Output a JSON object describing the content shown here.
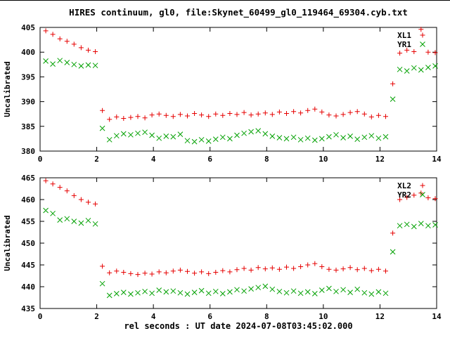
{
  "title": "HIRES continuum, gl0, file:Skynet_60499_gl0_119464_69304.cyb.txt",
  "xlabel": "rel seconds : UT date 2024-07-08T03:45:02.000",
  "chart_data": [
    {
      "type": "scatter",
      "ylabel": "Uncalibrated",
      "xlim": [
        0,
        14
      ],
      "ylim": [
        380,
        405
      ],
      "xticks": [
        0,
        2,
        4,
        6,
        8,
        10,
        12,
        14
      ],
      "yticks": [
        380,
        385,
        390,
        395,
        400,
        405
      ],
      "grid": false,
      "legend_position": "top-right",
      "x": [
        0.2,
        0.45,
        0.7,
        0.95,
        1.2,
        1.45,
        1.7,
        1.95,
        2.2,
        2.45,
        2.7,
        2.95,
        3.2,
        3.45,
        3.7,
        3.95,
        4.2,
        4.45,
        4.7,
        4.95,
        5.2,
        5.45,
        5.7,
        5.95,
        6.2,
        6.45,
        6.7,
        6.95,
        7.2,
        7.45,
        7.7,
        7.95,
        8.2,
        8.45,
        8.7,
        8.95,
        9.2,
        9.45,
        9.7,
        9.95,
        10.2,
        10.45,
        10.7,
        10.95,
        11.2,
        11.45,
        11.7,
        11.95,
        12.2,
        12.45,
        12.7,
        12.95,
        13.2,
        13.45,
        13.7,
        13.95
      ],
      "series": [
        {
          "name": "XL1",
          "marker": "plus",
          "color": "#e60000",
          "values": [
            404.3,
            403.6,
            402.7,
            402.2,
            401.6,
            400.9,
            400.4,
            400.1,
            388.2,
            386.4,
            386.9,
            386.6,
            386.8,
            387.0,
            386.7,
            387.3,
            387.5,
            387.2,
            387.0,
            387.4,
            387.1,
            387.6,
            387.3,
            387.0,
            387.5,
            387.2,
            387.6,
            387.4,
            387.8,
            387.3,
            387.5,
            387.7,
            387.4,
            387.9,
            387.6,
            388.0,
            387.7,
            388.2,
            388.5,
            387.9,
            387.3,
            387.1,
            387.4,
            387.8,
            388.0,
            387.5,
            386.9,
            387.2,
            387.0,
            393.6,
            399.8,
            400.4,
            400.1,
            404.6,
            400.0,
            399.9
          ]
        },
        {
          "name": "YR1",
          "marker": "cross",
          "color": "#00a000",
          "values": [
            398.2,
            397.6,
            398.3,
            397.9,
            397.5,
            397.2,
            397.4,
            397.3,
            384.6,
            382.3,
            383.1,
            383.5,
            383.3,
            383.6,
            383.8,
            383.2,
            382.6,
            383.0,
            382.9,
            383.4,
            382.1,
            381.9,
            382.3,
            382.0,
            382.4,
            382.8,
            382.5,
            383.2,
            383.6,
            383.9,
            384.1,
            383.5,
            383.0,
            382.7,
            382.5,
            382.8,
            382.3,
            382.6,
            382.2,
            382.5,
            382.9,
            383.3,
            382.7,
            383.0,
            382.4,
            382.8,
            383.1,
            382.6,
            382.9,
            390.5,
            396.5,
            396.2,
            396.8,
            396.4,
            396.9,
            397.2
          ]
        }
      ]
    },
    {
      "type": "scatter",
      "ylabel": "Uncalibrated",
      "xlim": [
        0,
        14
      ],
      "ylim": [
        435,
        465
      ],
      "xticks": [
        0,
        2,
        4,
        6,
        8,
        10,
        12,
        14
      ],
      "yticks": [
        435,
        440,
        445,
        450,
        455,
        460,
        465
      ],
      "grid": false,
      "legend_position": "top-right",
      "x": [
        0.2,
        0.45,
        0.7,
        0.95,
        1.2,
        1.45,
        1.7,
        1.95,
        2.2,
        2.45,
        2.7,
        2.95,
        3.2,
        3.45,
        3.7,
        3.95,
        4.2,
        4.45,
        4.7,
        4.95,
        5.2,
        5.45,
        5.7,
        5.95,
        6.2,
        6.45,
        6.7,
        6.95,
        7.2,
        7.45,
        7.7,
        7.95,
        8.2,
        8.45,
        8.7,
        8.95,
        9.2,
        9.45,
        9.7,
        9.95,
        10.2,
        10.45,
        10.7,
        10.95,
        11.2,
        11.45,
        11.7,
        11.95,
        12.2,
        12.45,
        12.7,
        12.95,
        13.2,
        13.45,
        13.7,
        13.95
      ],
      "series": [
        {
          "name": "XL2",
          "marker": "plus",
          "color": "#e60000",
          "values": [
            464.3,
            463.6,
            462.8,
            462.0,
            460.9,
            460.0,
            459.4,
            459.0,
            444.7,
            443.2,
            443.6,
            443.3,
            443.0,
            442.8,
            443.1,
            442.9,
            443.4,
            443.2,
            443.6,
            443.8,
            443.5,
            443.1,
            443.4,
            443.0,
            443.3,
            443.7,
            443.4,
            443.9,
            444.2,
            443.8,
            444.4,
            444.1,
            444.3,
            444.0,
            444.5,
            444.2,
            444.6,
            445.0,
            445.3,
            444.6,
            444.0,
            443.8,
            444.1,
            444.4,
            443.9,
            444.2,
            443.7,
            444.0,
            443.6,
            452.3,
            460.0,
            460.5,
            461.0,
            461.5,
            460.4,
            460.2
          ]
        },
        {
          "name": "YR2",
          "marker": "cross",
          "color": "#00a000",
          "values": [
            457.5,
            456.8,
            455.3,
            455.6,
            455.0,
            454.6,
            455.2,
            454.4,
            440.7,
            438.0,
            438.4,
            438.7,
            438.3,
            438.6,
            438.9,
            438.5,
            439.2,
            438.8,
            439.0,
            438.6,
            438.3,
            438.7,
            439.1,
            438.5,
            438.9,
            438.4,
            438.8,
            439.3,
            439.0,
            439.5,
            439.8,
            440.1,
            439.4,
            438.9,
            438.6,
            439.0,
            438.5,
            438.8,
            438.4,
            439.2,
            439.6,
            438.9,
            439.3,
            438.7,
            439.4,
            438.6,
            438.3,
            438.8,
            438.5,
            448.0,
            454.0,
            454.3,
            453.8,
            454.5,
            454.0,
            454.2
          ]
        }
      ]
    }
  ]
}
